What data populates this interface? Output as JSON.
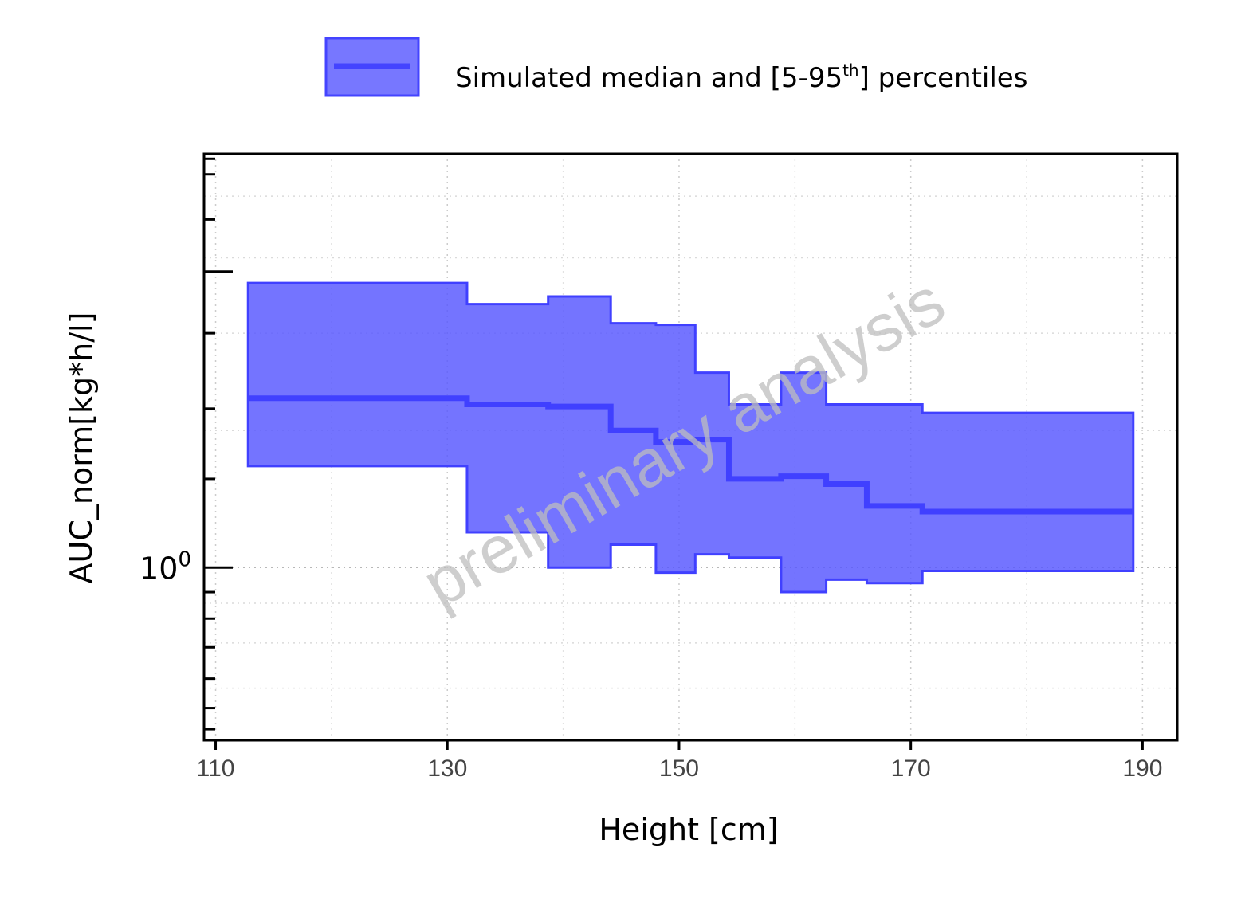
{
  "chart_data": {
    "type": "area",
    "xlabel": "Height [cm]",
    "ylabel": "AUC_norm[kg*h/l]",
    "xlim": [
      109,
      193
    ],
    "ylim": [
      0.6,
      3.4
    ],
    "yscale": "log",
    "xticks": [
      110,
      130,
      150,
      170,
      190
    ],
    "xtick_labels": [
      "110",
      "130",
      "150",
      "170",
      "190"
    ],
    "yticks": [
      1
    ],
    "ytick_labels": {
      "base": "10",
      "exponent": "0"
    },
    "grid": true,
    "legend": {
      "placement": "top",
      "label": {
        "main": "Simulated median and [5-95",
        "superscript": "th",
        "tail": "] percentiles"
      }
    },
    "series": [
      {
        "name": "Simulated median and [5-95th] percentiles",
        "color": "#5555ff",
        "bins": [
          {
            "x_start": 112.8,
            "x_end": 131.7,
            "median": 1.65,
            "p5": 1.35,
            "p95": 2.32
          },
          {
            "x_start": 131.7,
            "x_end": 138.7,
            "median": 1.62,
            "p5": 1.11,
            "p95": 2.18
          },
          {
            "x_start": 138.7,
            "x_end": 144.1,
            "median": 1.61,
            "p5": 1.0,
            "p95": 2.23
          },
          {
            "x_start": 144.1,
            "x_end": 148.0,
            "median": 1.5,
            "p5": 1.07,
            "p95": 2.06
          },
          {
            "x_start": 148.0,
            "x_end": 151.4,
            "median": 1.45,
            "p5": 0.985,
            "p95": 2.05
          },
          {
            "x_start": 151.4,
            "x_end": 154.3,
            "median": 1.46,
            "p5": 1.04,
            "p95": 1.78
          },
          {
            "x_start": 154.3,
            "x_end": 158.8,
            "median": 1.3,
            "p5": 1.03,
            "p95": 1.62
          },
          {
            "x_start": 158.8,
            "x_end": 162.7,
            "median": 1.31,
            "p5": 0.93,
            "p95": 1.78
          },
          {
            "x_start": 162.7,
            "x_end": 166.2,
            "median": 1.28,
            "p5": 0.965,
            "p95": 1.62
          },
          {
            "x_start": 166.2,
            "x_end": 171.0,
            "median": 1.2,
            "p5": 0.955,
            "p95": 1.62
          },
          {
            "x_start": 171.0,
            "x_end": 189.2,
            "median": 1.18,
            "p5": 0.99,
            "p95": 1.58
          }
        ]
      }
    ],
    "watermark": "preliminary analysis"
  }
}
